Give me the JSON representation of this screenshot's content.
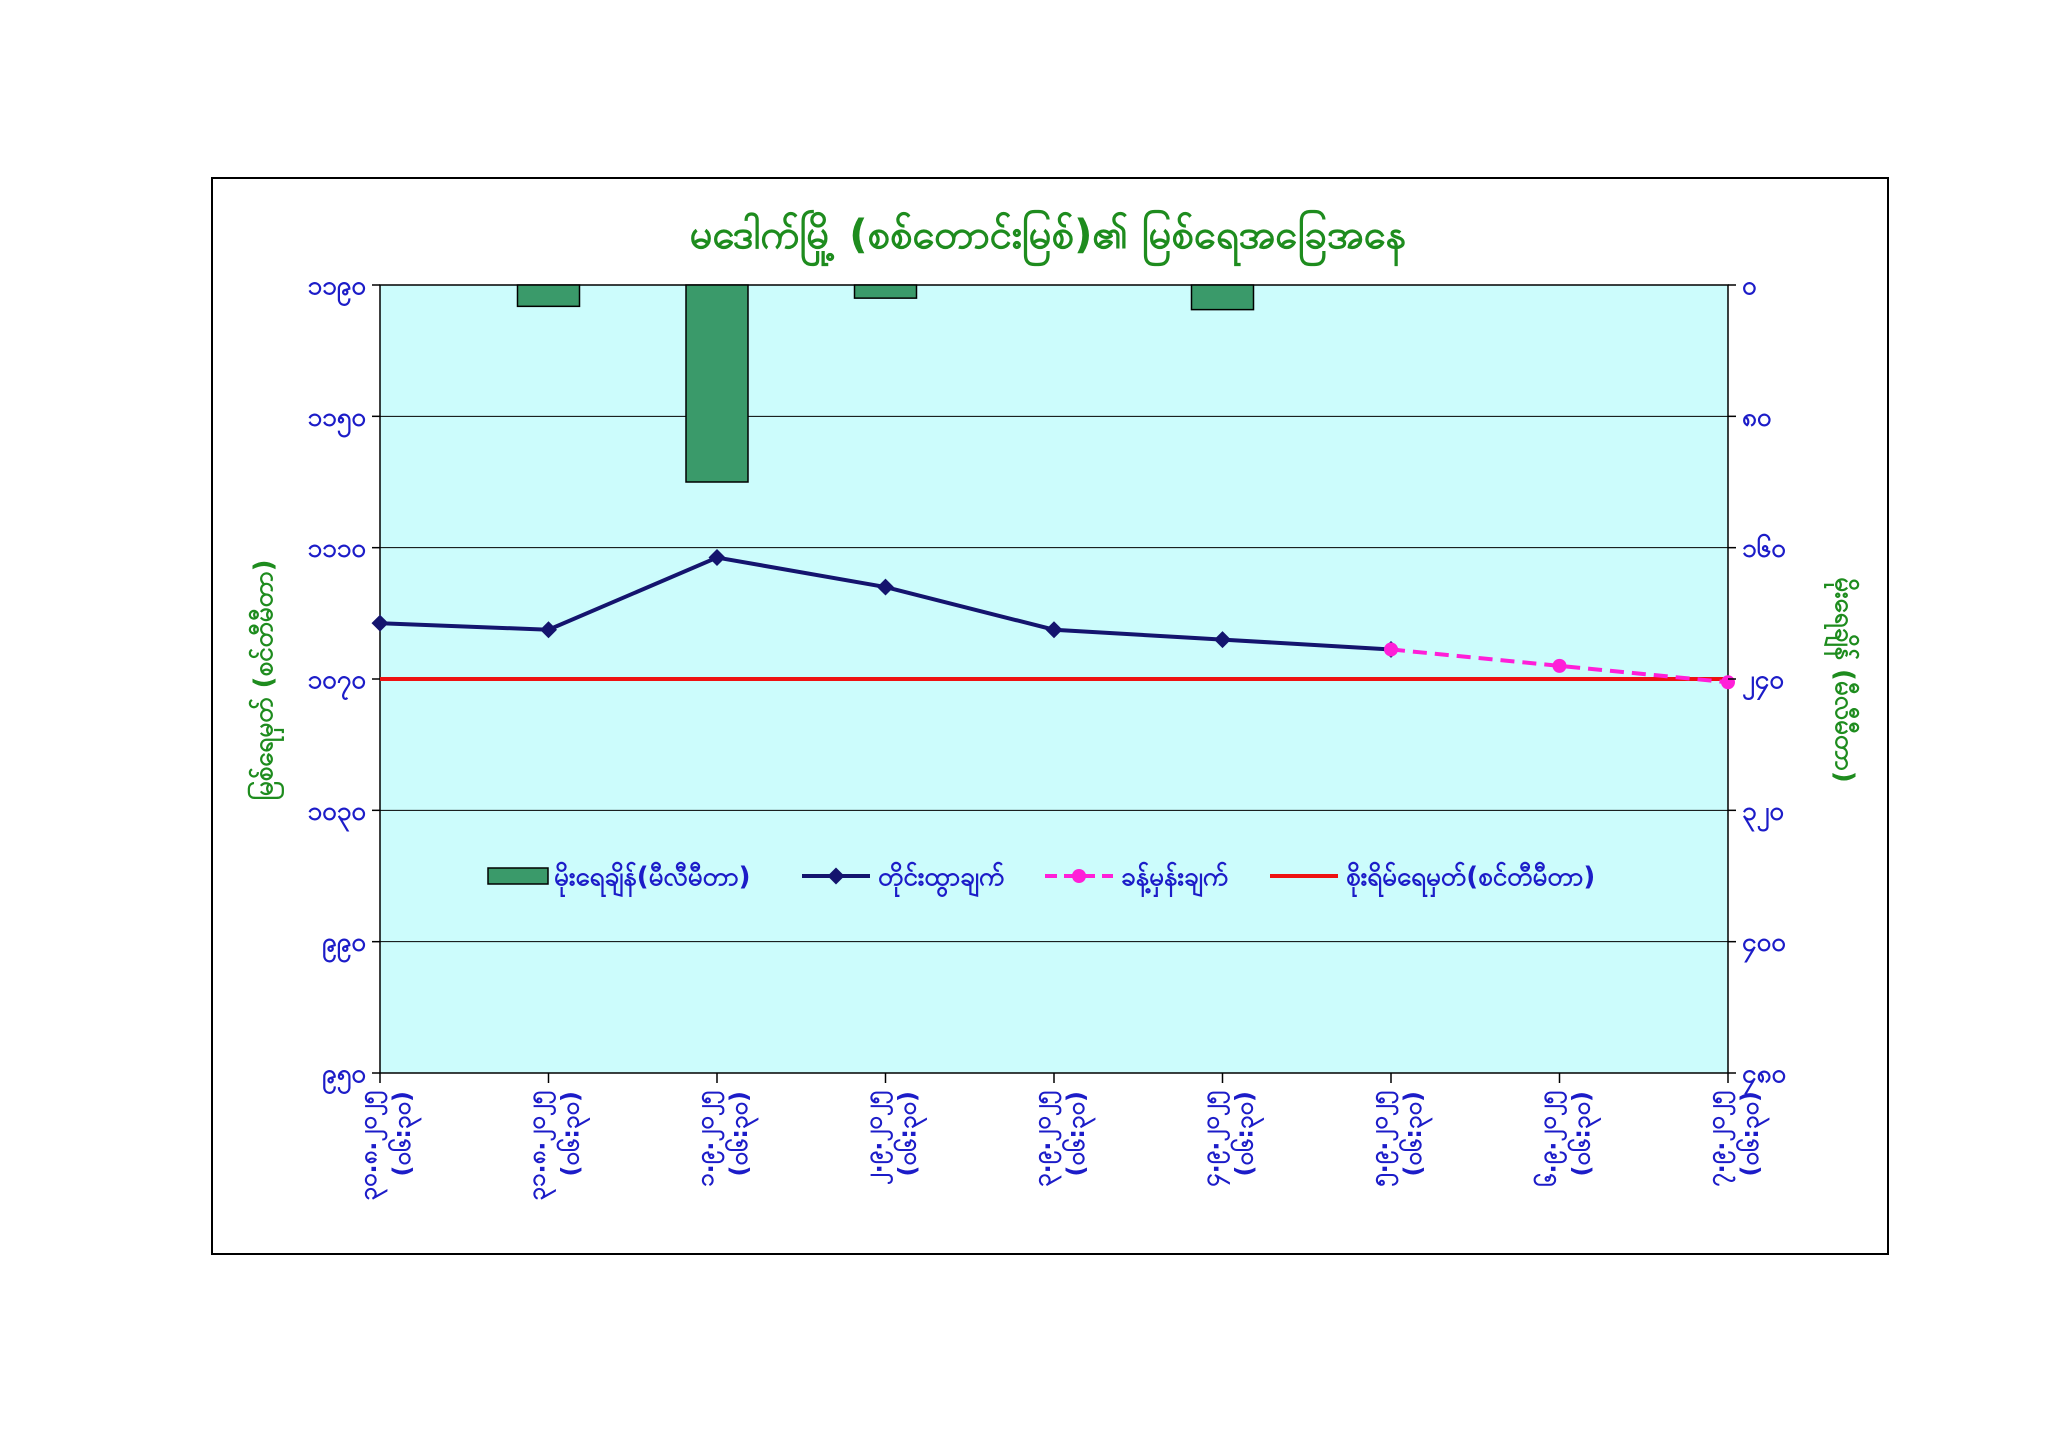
{
  "chart_data": {
    "title": "မဒေါက်မြို့ (စစ်တောင်းမြစ်)၏ မြစ်ရေအခြေအနေ",
    "type": "bar+line",
    "ylabel_left": "မြစ်ရေမှတ် (စင်တီမီတာ)",
    "ylabel_right": "မိုးရေချိန် (မီလီမီတာ)",
    "left_axis": {
      "range": [
        950,
        1190
      ],
      "ticks": [
        950,
        990,
        1030,
        1070,
        1110,
        1150,
        1190
      ],
      "tick_labels": [
        "၉၅၀",
        "၉၉၀",
        "၁၀၃၀",
        "၁၀၇၀",
        "၁၁၁၀",
        "၁၁၅၀",
        "၁၁၉၀"
      ]
    },
    "right_axis": {
      "range": [
        0,
        480
      ],
      "reversed": true,
      "ticks": [
        0,
        80,
        160,
        240,
        320,
        400,
        480
      ],
      "tick_labels": [
        "၀",
        "၈၀",
        "၁၆၀",
        "၂၄၀",
        "၃၂၀",
        "၄၀၀",
        "၄၈၀"
      ]
    },
    "categories": [
      "၃၀.၈.၂၀၂၅ (၀၆:၃၀)",
      "၃၁.၈.၂၀၂၅ (၀၆:၃၀)",
      "၁.၉.၂၀၂၅ (၀၆:၃၀)",
      "၂.၉.၂၀၂၅ (၀၆:၃၀)",
      "၃.၉.၂၀၂၅ (၀၆:၃၀)",
      "၄.၉.၂၀၂၅ (၀၆:၃၀)",
      "၅.၉.၂၀၂၅ (၀၆:၃၀)",
      "၆.၉.၂၀၂၅ (၀၆:၃၀)",
      "၇.၉.၂၀၂၅ (၀၆:၃၀)"
    ],
    "series": [
      {
        "name": "မိုးရေချိန်(မီလီမီတာ)",
        "type": "bar",
        "axis": "right",
        "color": "#3a9a6a",
        "values": [
          0,
          13,
          120,
          8,
          0,
          15,
          0,
          null,
          null
        ]
      },
      {
        "name": "တိုင်းထွာချက်",
        "type": "line",
        "axis": "left",
        "color": "#14146e",
        "values": [
          1087,
          1085,
          1107,
          1098,
          1085,
          1082,
          1079,
          null,
          null
        ]
      },
      {
        "name": "ခန့်မှန်းချက်",
        "type": "line-dashed",
        "axis": "left",
        "color": "#ff1fd8",
        "values": [
          null,
          null,
          null,
          null,
          null,
          null,
          1079,
          1074,
          1069
        ]
      },
      {
        "name": "စိုးရိမ်ရေမှတ်(စင်တီမီတာ)",
        "type": "hline",
        "axis": "left",
        "color": "#ee1111",
        "value": 1070
      }
    ],
    "plot_background": "#ccfcfc",
    "grid": true,
    "legend_position": "inside-center"
  }
}
